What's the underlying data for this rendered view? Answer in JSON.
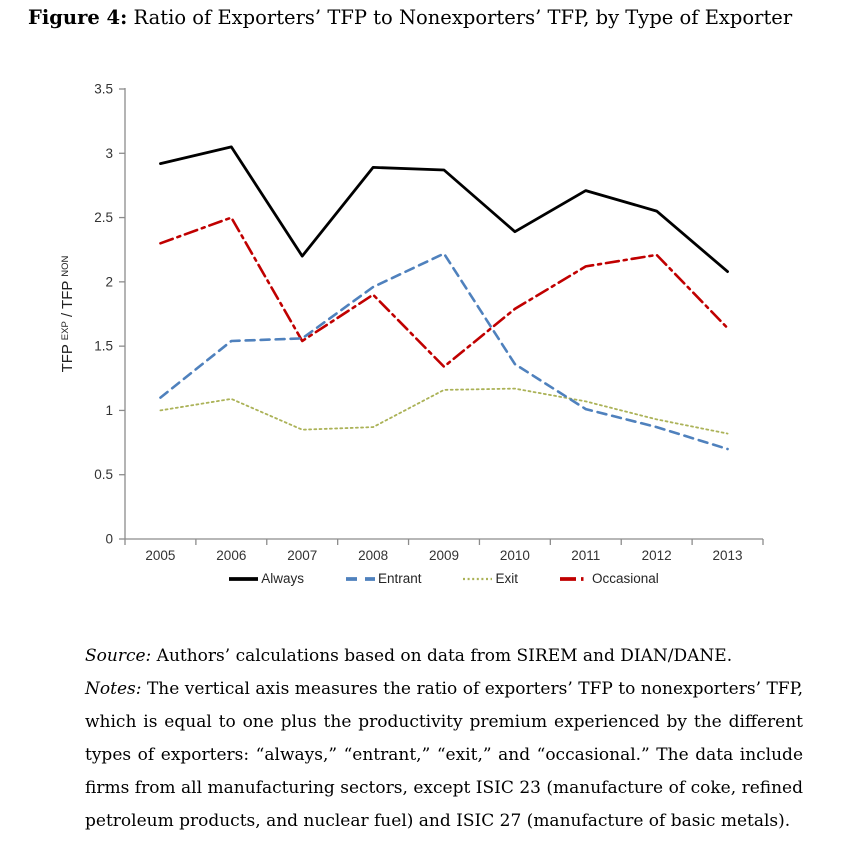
{
  "page": {
    "title_label": "Figure 4:",
    "title_text": "Ratio of Exporters’ TFP to Nonexporters’ TFP, by Type of Exporter"
  },
  "chart_data": {
    "type": "line",
    "title": "",
    "xlabel": "",
    "ylabel": "TFP EXP / TFP NON",
    "ylabel_parts": {
      "pre": "TFP ",
      "sup1": "EXP",
      "mid": " / TFP ",
      "sup2": "NON"
    },
    "categories": [
      "2005",
      "2006",
      "2007",
      "2008",
      "2009",
      "2010",
      "2011",
      "2012",
      "2013"
    ],
    "y_ticks": [
      "0",
      "0.5",
      "1",
      "1.5",
      "2",
      "2.5",
      "3",
      "3.5"
    ],
    "ylim": [
      0,
      3.5
    ],
    "grid": false,
    "legend_position": "bottom",
    "series": [
      {
        "name": "Always",
        "style": "solid",
        "color": "#000000",
        "values": [
          2.92,
          3.05,
          2.2,
          2.89,
          2.87,
          2.39,
          2.71,
          2.55,
          2.08
        ]
      },
      {
        "name": "Entrant",
        "style": "dashed",
        "color": "#4F81BD",
        "values": [
          1.1,
          1.54,
          1.56,
          1.96,
          2.22,
          1.36,
          1.01,
          0.87,
          0.7
        ]
      },
      {
        "name": "Exit",
        "style": "dotted",
        "color": "#ABB257",
        "values": [
          1.0,
          1.09,
          0.85,
          0.87,
          1.16,
          1.17,
          1.07,
          0.93,
          0.82
        ]
      },
      {
        "name": "Occasional",
        "style": "dashdot",
        "color": "#C00000",
        "values": [
          2.3,
          2.5,
          1.54,
          1.9,
          1.34,
          1.79,
          2.12,
          2.21,
          1.64
        ]
      }
    ]
  },
  "caption": {
    "source_label": "Source:",
    "source_text": "Authors’ calculations based on data from SIREM and DIAN/DANE.",
    "notes_label": "Notes:",
    "notes_text": "The vertical axis measures the ratio of exporters’ TFP to nonexporters’ TFP, which is equal to one plus the productivity premium experienced by the different types of exporters: “always,” “entrant,” “exit,” and “occasional.” The data include firms from all manufacturing sectors, except ISIC 23 (manufacture of coke, refined petroleum products, and nuclear fuel) and ISIC 27 (manufacture of basic metals)."
  }
}
